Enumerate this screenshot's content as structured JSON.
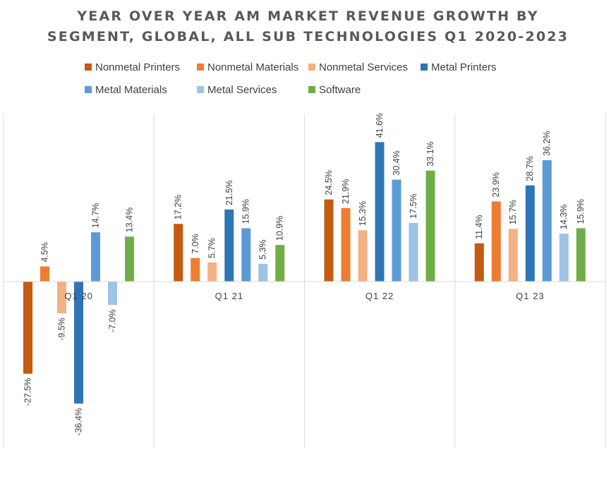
{
  "chart_data": {
    "type": "bar",
    "title": "YEAR OVER YEAR AM MARKET REVENUE GROWTH BY SEGMENT, GLOBAL, ALL SUB TECHNOLOGIES Q1 2020-2023",
    "title_lines": [
      "YEAR OVER YEAR AM MARKET REVENUE GROWTH BY",
      "SEGMENT, GLOBAL, ALL SUB TECHNOLOGIES Q1 2020-2023"
    ],
    "categories": [
      "Q1 20",
      "Q1 21",
      "Q1 22",
      "Q1 23"
    ],
    "series": [
      {
        "name": "Nonmetal Printers",
        "color": "#C55A11",
        "values": [
          -27.5,
          17.2,
          24.5,
          11.4
        ],
        "labels": [
          "-27.5%",
          "17.2%",
          "24.5%",
          "11.4%"
        ]
      },
      {
        "name": "Nonmetal Materials",
        "color": "#ED7D31",
        "values": [
          4.5,
          7.0,
          21.9,
          23.9
        ],
        "labels": [
          "4.5%",
          "7.0%",
          "21.9%",
          "23.9%"
        ]
      },
      {
        "name": "Nonmetal Services",
        "color": "#F4B183",
        "values": [
          -9.5,
          5.7,
          15.3,
          15.7
        ],
        "labels": [
          "-9.5%",
          "5.7%",
          "15.3%",
          "15.7%"
        ]
      },
      {
        "name": "Metal Printers",
        "color": "#2E75B6",
        "values": [
          -36.4,
          21.5,
          41.6,
          28.7
        ],
        "labels": [
          "-36.4%",
          "21.5%",
          "41.6%",
          "28.7%"
        ]
      },
      {
        "name": "Metal Materials",
        "color": "#5B9BD5",
        "values": [
          14.7,
          15.9,
          30.4,
          36.2
        ],
        "labels": [
          "14.7%",
          "15.9%",
          "30.4%",
          "36.2%"
        ]
      },
      {
        "name": "Metal Services",
        "color": "#9DC3E6",
        "values": [
          -7.0,
          5.3,
          17.5,
          14.3
        ],
        "labels": [
          "-7.0%",
          "5.3%",
          "17.5%",
          "14.3%"
        ]
      },
      {
        "name": "Software",
        "color": "#70AD47",
        "values": [
          13.4,
          10.9,
          33.1,
          15.9
        ],
        "labels": [
          "13.4%",
          "10.9%",
          "33.1%",
          "15.9%"
        ]
      }
    ],
    "ylim": [
      -50,
      50
    ],
    "legend_position": "top",
    "data_labels": "rotated vertical",
    "grid": "vertical category separators"
  }
}
